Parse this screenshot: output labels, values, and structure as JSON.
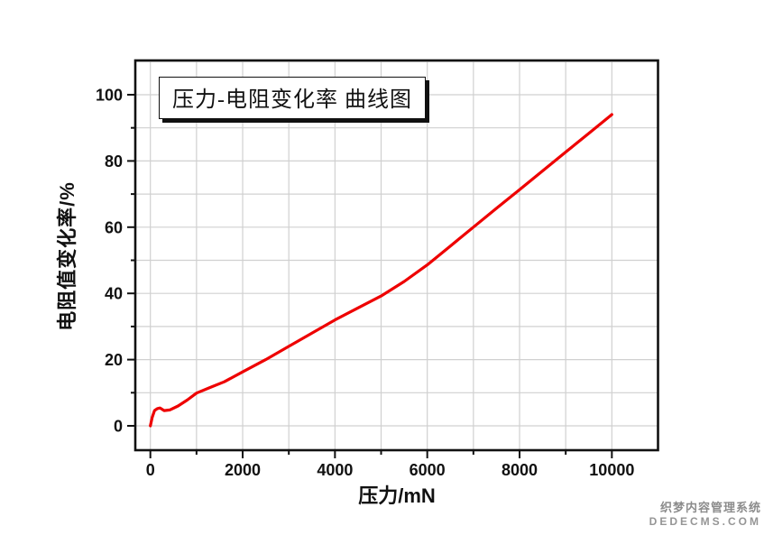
{
  "page": {
    "background": "#ffffff"
  },
  "watermark": {
    "line1": "织梦内容管理系统",
    "line2": "DEDECMS.COM",
    "color": "#8c8c8c"
  },
  "chart_data": {
    "type": "line",
    "title": "压力-电阻变化率 曲线图",
    "xlabel": "压力/mN",
    "ylabel": "电阻值变化率/%",
    "xlim": [
      -330,
      11000
    ],
    "ylim": [
      -7.5,
      110.5
    ],
    "x_major_ticks": [
      0,
      2000,
      4000,
      6000,
      8000,
      10000
    ],
    "x_minor_step": 1000,
    "y_major_ticks": [
      0,
      20,
      40,
      60,
      80,
      100
    ],
    "y_minor_step": 10,
    "grid": true,
    "grid_color": "#d0d0d0",
    "frame_color": "#111111",
    "line_color": "#ee0000",
    "legend_position": "none",
    "series": [
      {
        "name": "压力-电阻变化率",
        "x": [
          0,
          40,
          90,
          150,
          210,
          300,
          420,
          600,
          800,
          1000,
          1300,
          1600,
          2000,
          2500,
          3000,
          3500,
          4000,
          4500,
          5000,
          5500,
          6000,
          6500,
          7000,
          7500,
          8000,
          8500,
          9000,
          9500,
          10000
        ],
        "y": [
          0,
          2.5,
          4.6,
          5.2,
          5.4,
          4.6,
          4.8,
          6.0,
          7.8,
          9.9,
          11.6,
          13.3,
          16.3,
          20.0,
          24.0,
          28.0,
          32.0,
          35.6,
          39.2,
          43.6,
          48.6,
          54.3,
          60.0,
          65.7,
          71.3,
          77.0,
          82.7,
          88.3,
          94.0
        ]
      }
    ]
  }
}
